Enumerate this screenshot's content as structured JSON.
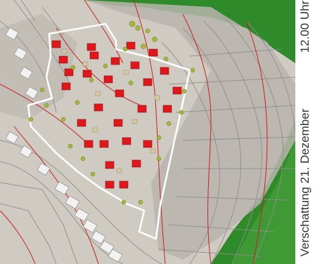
{
  "caption": {
    "shadow_label": "Verschattung 21. Dezember",
    "time_label": "12.00 Uhr"
  },
  "colors": {
    "terrain": "#cfcbc2",
    "shadow": "#bdbab3",
    "roof": "#e0181c",
    "forest": "#2f8a2a",
    "contour": "#cc1f1f",
    "boundary": "#ffffff",
    "tree": "#a4b83a",
    "road": "#8e8e8e"
  }
}
